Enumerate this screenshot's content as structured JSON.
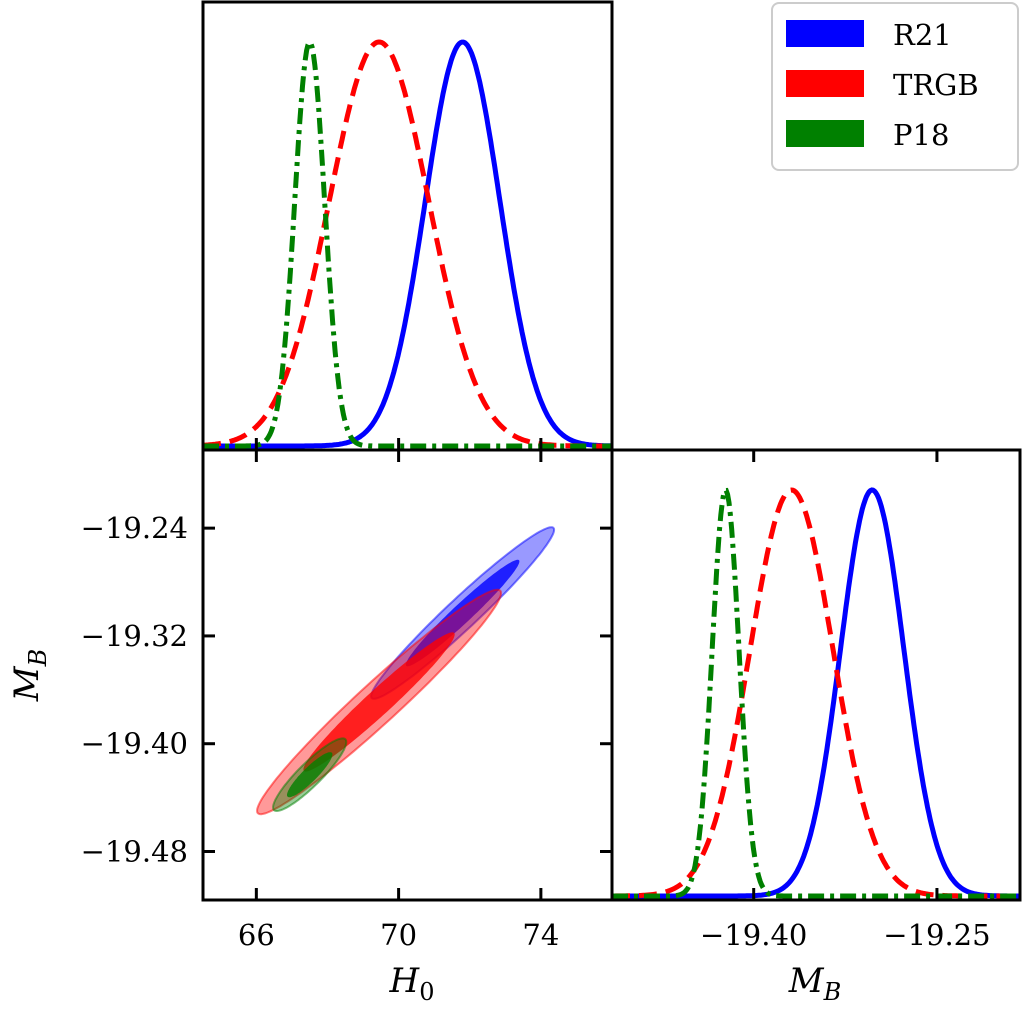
{
  "chart_data": {
    "type": "corner",
    "parameters": [
      {
        "key": "H0",
        "label": "H",
        "subscript": "0",
        "lim": [
          64.5,
          76.0
        ],
        "ticks": [
          66,
          70,
          74
        ],
        "tick_labels": [
          "66",
          "70",
          "74"
        ]
      },
      {
        "key": "MB",
        "label": "M",
        "subscript": "B",
        "lim": [
          -19.516,
          -19.182
        ],
        "ticks": [
          -19.4,
          -19.25
        ],
        "tick_labels": [
          "−19.40",
          "−19.25"
        ],
        "y_ticks": [
          -19.24,
          -19.32,
          -19.4,
          -19.48
        ],
        "y_tick_labels": [
          "−19.24",
          "−19.32",
          "−19.40",
          "−19.48"
        ]
      }
    ],
    "series": [
      {
        "name": "R21",
        "color": "#0000ff",
        "linestyle": "solid",
        "H0_mean": 71.8,
        "H0_sigma": 1.05,
        "MB_mean": -19.303,
        "MB_sigma": 0.026,
        "correlation": 0.97
      },
      {
        "name": "TRGB",
        "color": "#ff0000",
        "linestyle": "dashed",
        "H0_mean": 69.45,
        "H0_sigma": 1.4,
        "MB_mean": -19.369,
        "MB_sigma": 0.034,
        "correlation": 0.97
      },
      {
        "name": "P18",
        "color": "#008000",
        "linestyle": "dashdot",
        "H0_mean": 67.5,
        "H0_sigma": 0.42,
        "MB_mean": -19.423,
        "MB_sigma": 0.011,
        "correlation": 0.9
      }
    ],
    "contour_levels": [
      "68%",
      "95%"
    ],
    "legend": {
      "placement": "top-right",
      "entries": [
        "R21",
        "TRGB",
        "P18"
      ]
    }
  }
}
